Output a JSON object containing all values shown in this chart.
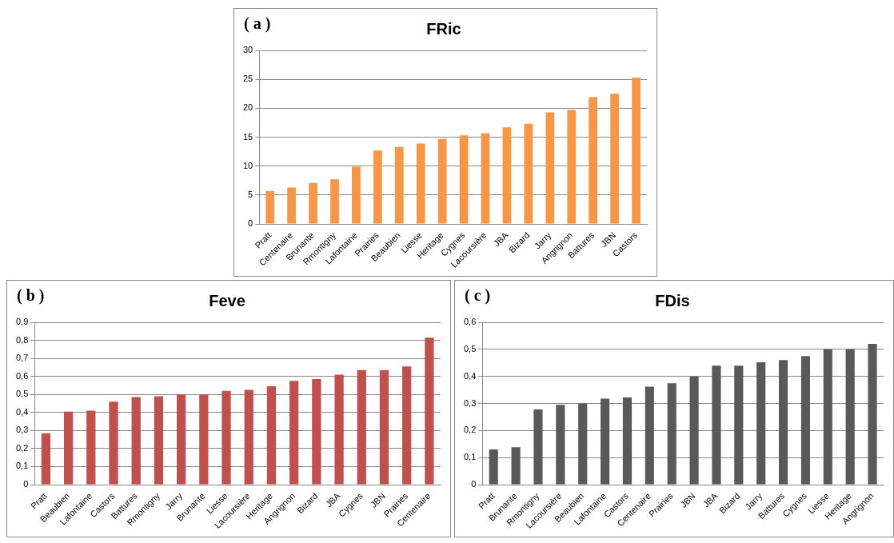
{
  "chart_data": [
    {
      "type": "bar",
      "title": "FRic",
      "annotations": [
        "( a )"
      ],
      "categories": [
        "Pratt",
        "Centenaire",
        "Brunante",
        "Rmontigny",
        "Lafontaine",
        "Prairies",
        "Beaubien",
        "Liesse",
        "Heritage",
        "Cygnes",
        "Lacoursière",
        "JBA",
        "Bizard",
        "Jarry",
        "Angrignon",
        "Battures",
        "JBN",
        "Castors"
      ],
      "values": [
        5.7,
        6.3,
        7.1,
        7.7,
        9.9,
        12.7,
        13.3,
        13.9,
        14.7,
        15.3,
        15.7,
        16.7,
        17.3,
        19.3,
        19.7,
        21.9,
        22.5,
        25.3
      ],
      "color": "#f79646",
      "ylim": [
        0,
        30
      ],
      "yticks": [
        0,
        5,
        10,
        15,
        20,
        25,
        30
      ],
      "grid": "y",
      "legend": false
    },
    {
      "type": "bar",
      "title": "Feve",
      "annotations": [
        "( b )"
      ],
      "categories": [
        "Pratt",
        "Beaubien",
        "Lafontaine",
        "Castors",
        "Battures",
        "Rmontigny",
        "Jarry",
        "Brunante",
        "Liesse",
        "Lacoursière",
        "Heritage",
        "Angrignon",
        "Bizard",
        "JBA",
        "Cygnes",
        "JBN",
        "Prairies",
        "Centenaire"
      ],
      "values": [
        0.285,
        0.405,
        0.41,
        0.46,
        0.485,
        0.49,
        0.5,
        0.5,
        0.52,
        0.525,
        0.545,
        0.575,
        0.585,
        0.61,
        0.635,
        0.635,
        0.655,
        0.815
      ],
      "color": "#c0504d",
      "ylim": [
        0,
        0.9
      ],
      "yticks": [
        0,
        {
          "value": 0.1,
          "label": "0,1"
        },
        {
          "value": 0.2,
          "label": "0,2"
        },
        {
          "value": 0.3,
          "label": "0,3"
        },
        {
          "value": 0.4,
          "label": "0,4"
        },
        {
          "value": 0.5,
          "label": "0,5"
        },
        {
          "value": 0.6,
          "label": "0,6"
        },
        {
          "value": 0.7,
          "label": "0,7"
        },
        {
          "value": 0.8,
          "label": "0,8"
        },
        {
          "value": 0.9,
          "label": "0,9"
        }
      ],
      "grid": "y",
      "legend": false
    },
    {
      "type": "bar",
      "title": "FDis",
      "annotations": [
        "( c )"
      ],
      "categories": [
        "Pratt",
        "Brunante",
        "Rmontigny",
        "Lacoursière",
        "Beaubien",
        "Lafontaine",
        "Castors",
        "Centenaire",
        "Prairies",
        "JBN",
        "JBA",
        "Bizard",
        "Jarry",
        "Battures",
        "Cygnes",
        "Liesse",
        "Heritage",
        "Angrignon"
      ],
      "values": [
        0.13,
        0.138,
        0.278,
        0.295,
        0.3,
        0.318,
        0.322,
        0.362,
        0.375,
        0.4,
        0.44,
        0.44,
        0.452,
        0.46,
        0.475,
        0.5,
        0.5,
        0.52
      ],
      "color": "#595959",
      "ylim": [
        0,
        0.6
      ],
      "yticks": [
        0,
        {
          "value": 0.1,
          "label": "0,1"
        },
        {
          "value": 0.2,
          "label": "0,2"
        },
        {
          "value": 0.3,
          "label": "0,3"
        },
        {
          "value": 0.4,
          "label": "0,4"
        },
        {
          "value": 0.5,
          "label": "0,5"
        },
        {
          "value": 0.6,
          "label": "0,6"
        }
      ],
      "grid": "y",
      "legend": false
    }
  ]
}
